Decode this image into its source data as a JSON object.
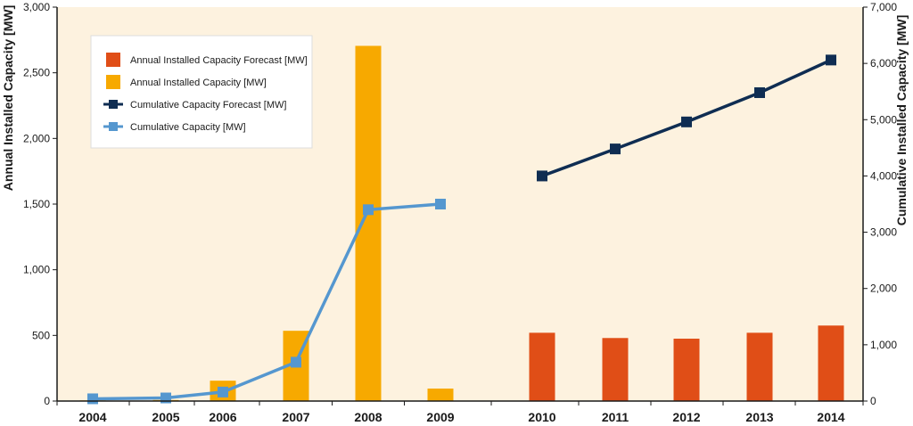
{
  "chart_data": {
    "type": "bar",
    "categories": [
      "2004",
      "2005",
      "2006",
      "2007",
      "2008",
      "2009",
      "2010",
      "2011",
      "2012",
      "2013",
      "2014"
    ],
    "ylabel": "Annual Installed Capacity [MW]",
    "y2label": "Cumulative Installed Capacity [MW]",
    "ylim": [
      0,
      3000
    ],
    "y2lim": [
      0,
      7000
    ],
    "yticks": [
      "0",
      "500",
      "1,000",
      "1,500",
      "2,000",
      "2,500",
      "3,000"
    ],
    "y2ticks": [
      "0",
      "1,000",
      "2,000",
      "3,000",
      "4,000",
      "5,000",
      "6,000",
      "7,000"
    ],
    "grid": false,
    "legend_position": "top-left",
    "series": [
      {
        "name": "Annual Installed Capacity Forecast [MW]",
        "type": "bar",
        "axis": "left",
        "color": "#e04e17",
        "values": [
          null,
          null,
          null,
          null,
          null,
          null,
          520,
          480,
          475,
          520,
          575
        ]
      },
      {
        "name": "Annual Installed Capacity [MW]",
        "type": "bar",
        "axis": "left",
        "color": "#f7a900",
        "values": [
          5,
          8,
          155,
          535,
          2705,
          95,
          null,
          null,
          null,
          null,
          null
        ]
      },
      {
        "name": "Cumulative Capacity Forecast [MW]",
        "type": "line",
        "axis": "right",
        "color": "#0f2d52",
        "values": [
          null,
          null,
          null,
          null,
          null,
          null,
          4000,
          4480,
          4960,
          5480,
          6060
        ]
      },
      {
        "name": "Cumulative Capacity [MW]",
        "type": "line",
        "axis": "right",
        "color": "#5597cf",
        "values": [
          40,
          55,
          160,
          690,
          3400,
          3500,
          null,
          null,
          null,
          null,
          null
        ]
      }
    ]
  }
}
